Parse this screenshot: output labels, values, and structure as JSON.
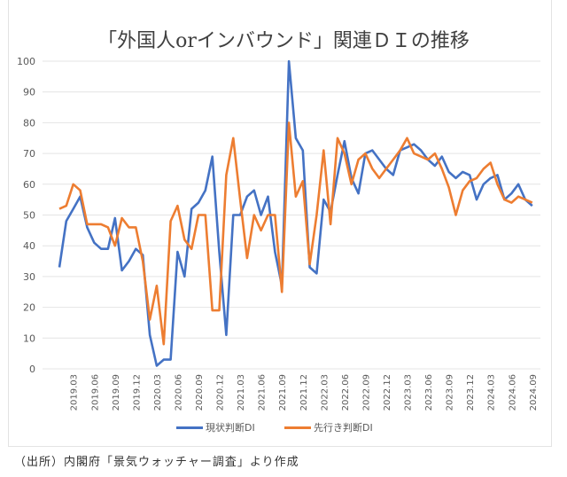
{
  "chart_data": {
    "type": "line",
    "title": "「外国人orインバウンド」関連ＤＩの推移",
    "xlabel": "",
    "ylabel": "",
    "ylim": [
      0,
      100
    ],
    "yticks": [
      0,
      10,
      20,
      30,
      40,
      50,
      60,
      70,
      80,
      90,
      100
    ],
    "grid": true,
    "legend_position": "bottom",
    "x": [
      "2019.01",
      "2019.02",
      "2019.03",
      "2019.04",
      "2019.05",
      "2019.06",
      "2019.07",
      "2019.08",
      "2019.09",
      "2019.10",
      "2019.11",
      "2019.12",
      "2020.01",
      "2020.02",
      "2020.03",
      "2020.04",
      "2020.05",
      "2020.06",
      "2020.07",
      "2020.08",
      "2020.09",
      "2020.10",
      "2020.11",
      "2020.12",
      "2021.01",
      "2021.02",
      "2021.03",
      "2021.04",
      "2021.05",
      "2021.06",
      "2021.07",
      "2021.08",
      "2021.09",
      "2021.10",
      "2021.11",
      "2021.12",
      "2022.01",
      "2022.02",
      "2022.03",
      "2022.04",
      "2022.05",
      "2022.06",
      "2022.07",
      "2022.08",
      "2022.09",
      "2022.10",
      "2022.11",
      "2022.12",
      "2023.01",
      "2023.02",
      "2023.03",
      "2023.04",
      "2023.05",
      "2023.06",
      "2023.07",
      "2023.08",
      "2023.09",
      "2023.10",
      "2023.11",
      "2023.12",
      "2024.01",
      "2024.02",
      "2024.03",
      "2024.04",
      "2024.05",
      "2024.06",
      "2024.07",
      "2024.08",
      "2024.09"
    ],
    "xticks": [
      "2019.03",
      "2019.06",
      "2019.09",
      "2019.12",
      "2020.03",
      "2020.06",
      "2020.09",
      "2020.12",
      "2021.03",
      "2021.06",
      "2021.09",
      "2021.12",
      "2022.03",
      "2022.06",
      "2022.09",
      "2022.12",
      "2023.03",
      "2023.06",
      "2023.09",
      "2023.12",
      "2024.03",
      "2024.06",
      "2024.09"
    ],
    "series": [
      {
        "name": "現状判断DI",
        "color": "#4472c4",
        "values": [
          33,
          48,
          52,
          56,
          46,
          41,
          39,
          39,
          49,
          32,
          35,
          39,
          37,
          11,
          1,
          3,
          3,
          38,
          30,
          52,
          54,
          58,
          69,
          38,
          11,
          50,
          50,
          56,
          58,
          50,
          56,
          38,
          27,
          100,
          75,
          71,
          33,
          31,
          55,
          51,
          63,
          74,
          62,
          57,
          70,
          71,
          68,
          65,
          63,
          71,
          72,
          73,
          71,
          68,
          66,
          69,
          64,
          62,
          64,
          63,
          55,
          60,
          62,
          63,
          55,
          57,
          60,
          55,
          53
        ]
      },
      {
        "name": "先行き判断DI",
        "color": "#ed7d31",
        "values": [
          52,
          53,
          60,
          58,
          47,
          47,
          47,
          46,
          40,
          49,
          46,
          46,
          35,
          16,
          27,
          8,
          48,
          53,
          42,
          39,
          50,
          50,
          19,
          19,
          63,
          75,
          55,
          36,
          50,
          45,
          50,
          50,
          25,
          80,
          56,
          61,
          34,
          50,
          71,
          47,
          75,
          70,
          60,
          68,
          70,
          65,
          62,
          65,
          68,
          71,
          75,
          70,
          69,
          68,
          70,
          65,
          59,
          50,
          58,
          61,
          62,
          65,
          67,
          60,
          55,
          54,
          56,
          55,
          54
        ]
      }
    ]
  },
  "footer": "（出所）内閣府「景気ウォッチャー調査」より作成"
}
